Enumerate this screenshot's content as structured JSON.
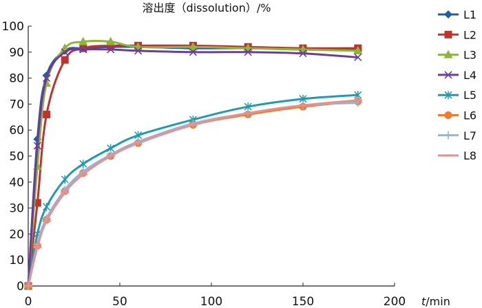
{
  "chart_data": {
    "type": "line",
    "title": "溶出度（dissolution）/%",
    "xlabel_var": "t",
    "xlabel_unit": "/min",
    "ylabel": "",
    "xlim": [
      0,
      200
    ],
    "ylim": [
      0,
      100
    ],
    "xticks": [
      0,
      50,
      100,
      150,
      200
    ],
    "yticks": [
      0,
      10,
      20,
      30,
      40,
      50,
      60,
      70,
      80,
      90,
      100
    ],
    "grid": false,
    "legend_position": "right",
    "series": [
      {
        "name": "L1",
        "color": "#1f5fa8",
        "marker": "diamond",
        "x": [
          0,
          5,
          10,
          20,
          30,
          45,
          60,
          90,
          120,
          150,
          180
        ],
        "y": [
          0,
          56.5,
          81,
          90.5,
          91.5,
          92,
          92,
          91.5,
          91.5,
          91,
          91
        ]
      },
      {
        "name": "L2",
        "color": "#c0322c",
        "marker": "square",
        "x": [
          0,
          5,
          10,
          20,
          30,
          45,
          60,
          90,
          120,
          150,
          180
        ],
        "y": [
          0,
          32,
          66,
          87,
          91.5,
          92.5,
          92.5,
          92.5,
          92,
          91.5,
          91.5
        ]
      },
      {
        "name": "L3",
        "color": "#8db53c",
        "marker": "triangle",
        "x": [
          0,
          5,
          10,
          20,
          30,
          45,
          60,
          90,
          120,
          150,
          180
        ],
        "y": [
          0,
          46,
          78,
          91.5,
          94,
          94,
          92,
          92,
          91.5,
          91,
          90.5
        ]
      },
      {
        "name": "L4",
        "color": "#6a3e98",
        "marker": "x",
        "x": [
          0,
          5,
          10,
          20,
          30,
          45,
          60,
          90,
          120,
          150,
          180
        ],
        "y": [
          0,
          54,
          80,
          90,
          91,
          91,
          90.5,
          90,
          90,
          89.5,
          88
        ]
      },
      {
        "name": "L5",
        "color": "#1f9bad",
        "marker": "star",
        "x": [
          0,
          5,
          10,
          20,
          30,
          45,
          60,
          90,
          120,
          150,
          180
        ],
        "y": [
          0,
          20,
          30.5,
          41,
          47,
          53,
          58,
          64,
          69,
          72,
          73.5
        ]
      },
      {
        "name": "L6",
        "color": "#f07b2a",
        "marker": "circle",
        "x": [
          0,
          5,
          10,
          20,
          30,
          45,
          60,
          90,
          120,
          150,
          180
        ],
        "y": [
          0,
          15.5,
          25.5,
          36.5,
          43.5,
          50,
          55,
          62,
          66,
          69,
          71
        ]
      },
      {
        "name": "L7",
        "color": "#95b3d7",
        "marker": "plus",
        "x": [
          0,
          5,
          10,
          20,
          30,
          45,
          60,
          90,
          120,
          150,
          180
        ],
        "y": [
          0,
          16,
          26,
          37,
          44,
          50.5,
          55.5,
          62.5,
          66.5,
          69.5,
          70.5
        ]
      },
      {
        "name": "L8",
        "color": "#e6908f",
        "marker": "none",
        "x": [
          0,
          5,
          10,
          20,
          30,
          45,
          60,
          90,
          120,
          150,
          180
        ],
        "y": [
          0,
          15,
          25,
          36,
          43,
          50,
          55,
          62,
          66.5,
          69.5,
          71.5
        ]
      }
    ]
  }
}
